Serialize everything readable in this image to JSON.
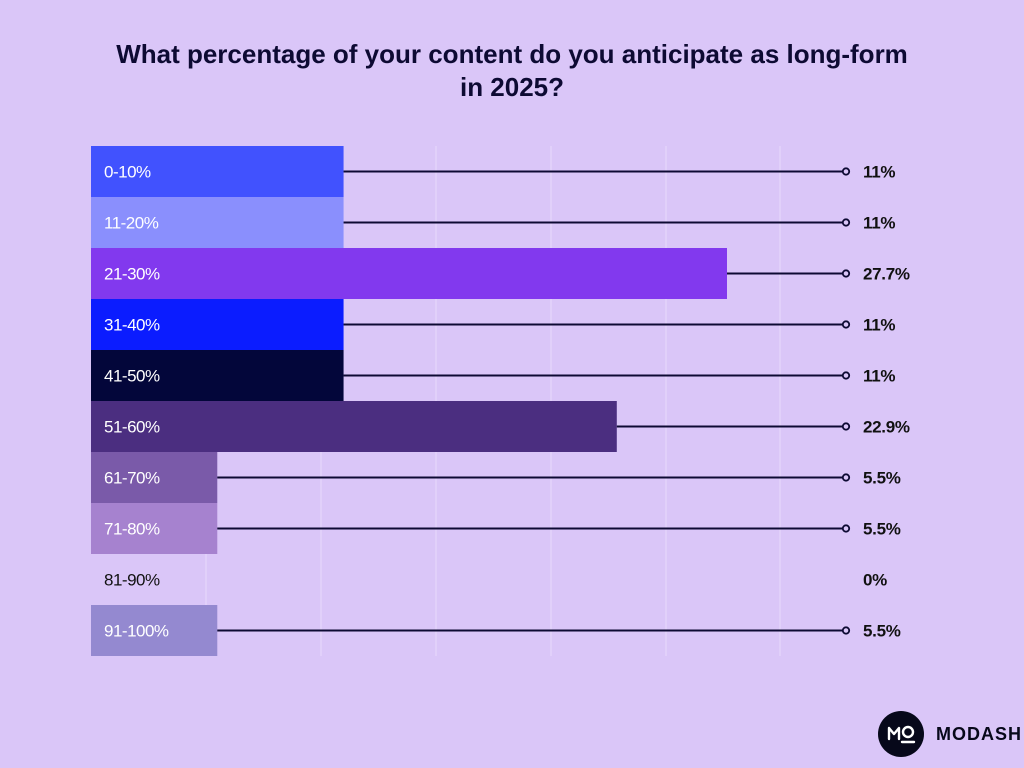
{
  "chart_data": {
    "type": "bar",
    "orientation": "horizontal",
    "title_lines": [
      "What percentage of your content do you anticipate as long-form",
      "in 2025?"
    ],
    "categories": [
      "0-10%",
      "11-20%",
      "21-30%",
      "31-40%",
      "41-50%",
      "51-60%",
      "61-70%",
      "71-80%",
      "81-90%",
      "91-100%"
    ],
    "values": [
      11,
      11,
      27.7,
      11,
      11,
      22.9,
      5.5,
      5.5,
      0,
      5.5
    ],
    "value_labels": [
      "11%",
      "11%",
      "27.7%",
      "11%",
      "11%",
      "22.9%",
      "5.5%",
      "5.5%",
      "0%",
      "5.5%"
    ],
    "bar_colors": [
      "#4152fe",
      "#8a8ffd",
      "#8239ee",
      "#0b1cff",
      "#03063a",
      "#4b2e80",
      "#7a5aa9",
      "#a682cf",
      "#e9dbfb",
      "#9489d0"
    ],
    "label_colors": [
      "#ffffff",
      "#ffffff",
      "#ffffff",
      "#ffffff",
      "#ffffff",
      "#ffffff",
      "#ffffff",
      "#ffffff",
      "#111111",
      "#ffffff"
    ],
    "xlim": [
      0,
      100
    ],
    "grid": true,
    "leader_lines": true
  },
  "brand": {
    "name": "MODASH",
    "logo_icon": "mo-monogram-icon"
  },
  "colors": {
    "background": "#dac6f8",
    "leader_line": "#0d0a33",
    "gridline": "#e8dafc"
  }
}
